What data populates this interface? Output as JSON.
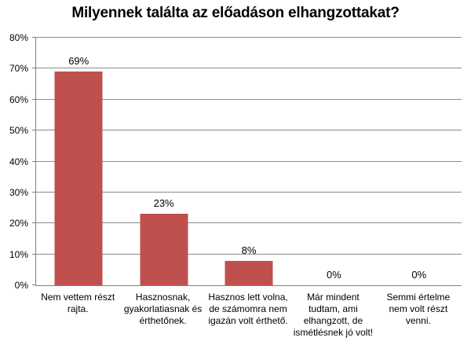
{
  "chart_data": {
    "type": "bar",
    "title": "Milyennek találta az előadáson elhangzottakat?",
    "categories": [
      "Nem vettem részt\nrajta.",
      "Hasznosnak,\ngyakorlatiasnak és\nérthetőnek.",
      "Hasznos lett volna,\nde számomra nem\nigazán volt érthető.",
      "Már mindent\ntudtam, ami\nelhangzott, de\nismétlésnek jó volt!",
      "Semmi értelme\nnem volt részt\nvenni."
    ],
    "values": [
      69,
      23,
      8,
      0,
      0
    ],
    "value_labels": [
      "69%",
      "23%",
      "8%",
      "0%",
      "0%"
    ],
    "xlabel": "",
    "ylabel": "",
    "ylim": [
      0,
      80
    ],
    "ytick_step": 10,
    "ytick_labels": [
      "0%",
      "10%",
      "20%",
      "30%",
      "40%",
      "50%",
      "60%",
      "70%",
      "80%"
    ],
    "grid": true,
    "legend": false,
    "colors": {
      "bar": "#C0504D",
      "gridline": "#8C8C8C",
      "axis": "#808080",
      "text": "#000000",
      "background": "#FFFFFF"
    }
  }
}
